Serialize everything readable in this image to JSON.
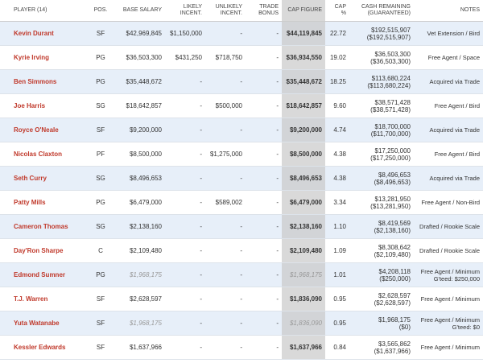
{
  "table": {
    "headers": [
      "PLAYER (14)",
      "POS.",
      "BASE SALARY",
      "LIKELY INCENT.",
      "UNLIKELY INCENT.",
      "TRADE BONUS",
      "CAP FIGURE",
      "CAP %",
      "CASH REMAINING (GUARANTEED)",
      "NOTES"
    ],
    "rows": [
      [
        "Kevin Durant",
        "SF",
        "$42,969,845",
        "$1,150,000",
        "-",
        "-",
        "$44,119,845",
        "22.72",
        [
          "$192,515,907",
          "($192,515,907)"
        ],
        "Vet Extension / Bird"
      ],
      [
        "Kyrie Irving",
        "PG",
        "$36,503,300",
        "$431,250",
        "$718,750",
        "-",
        "$36,934,550",
        "19.02",
        [
          "$36,503,300",
          "($36,503,300)"
        ],
        "Free Agent / Space"
      ],
      [
        "Ben Simmons",
        "PG",
        "$35,448,672",
        "-",
        "-",
        "-",
        "$35,448,672",
        "18.25",
        [
          "$113,680,224",
          "($113,680,224)"
        ],
        "Acquired via Trade"
      ],
      [
        "Joe Harris",
        "SG",
        "$18,642,857",
        "-",
        "$500,000",
        "-",
        "$18,642,857",
        "9.60",
        [
          "$38,571,428",
          "($38,571,428)"
        ],
        "Free Agent / Bird"
      ],
      [
        "Royce O'Neale",
        "SF",
        "$9,200,000",
        "-",
        "-",
        "-",
        "$9,200,000",
        "4.74",
        [
          "$18,700,000",
          "($11,700,000)"
        ],
        "Acquired via Trade"
      ],
      [
        "Nicolas Claxton",
        "PF",
        "$8,500,000",
        "-",
        "$1,275,000",
        "-",
        "$8,500,000",
        "4.38",
        [
          "$17,250,000",
          "($17,250,000)"
        ],
        "Free Agent / Bird"
      ],
      [
        "Seth Curry",
        "SG",
        "$8,496,653",
        "-",
        "-",
        "-",
        "$8,496,653",
        "4.38",
        [
          "$8,496,653",
          "($8,496,653)"
        ],
        "Acquired via Trade"
      ],
      [
        "Patty Mills",
        "PG",
        "$6,479,000",
        "-",
        "$589,002",
        "-",
        "$6,479,000",
        "3.34",
        [
          "$13,281,950",
          "($13,281,950)"
        ],
        "Free Agent / Non-Bird"
      ],
      [
        "Cameron Thomas",
        "SG",
        "$2,138,160",
        "-",
        "-",
        "-",
        "$2,138,160",
        "1.10",
        [
          "$8,419,569",
          "($2,138,160)"
        ],
        "Drafted / Rookie Scale"
      ],
      [
        "Day'Ron Sharpe",
        "C",
        "$2,109,480",
        "-",
        "-",
        "-",
        "$2,109,480",
        "1.09",
        [
          "$8,308,642",
          "($2,109,480)"
        ],
        "Drafted / Rookie Scale"
      ],
      [
        "Edmond Sumner",
        "PG",
        "$1,968,175",
        "-",
        "-",
        "-",
        "$1,968,175",
        "1.01",
        [
          "$4,208,118",
          "($250,000)"
        ],
        "Free Agent / Minimum G'teed: $250,000"
      ],
      [
        "T.J. Warren",
        "SF",
        "$2,628,597",
        "-",
        "-",
        "-",
        "$1,836,090",
        "0.95",
        [
          "$2,628,597",
          "($2,628,597)"
        ],
        "Free Agent / Minimum"
      ],
      [
        "Yuta Watanabe",
        "SF",
        "$1,968,175",
        "-",
        "-",
        "-",
        "$1,836,090",
        "0.95",
        [
          "$1,968,175",
          "($0)"
        ],
        "Free Agent / Minimum G'teed: $0"
      ],
      [
        "Kessler Edwards",
        "SF",
        "$1,637,966",
        "-",
        "-",
        "-",
        "$1,637,966",
        "0.84",
        [
          "$3,565,862",
          "($1,637,966)"
        ],
        "Free Agent / Minimum"
      ]
    ]
  }
}
